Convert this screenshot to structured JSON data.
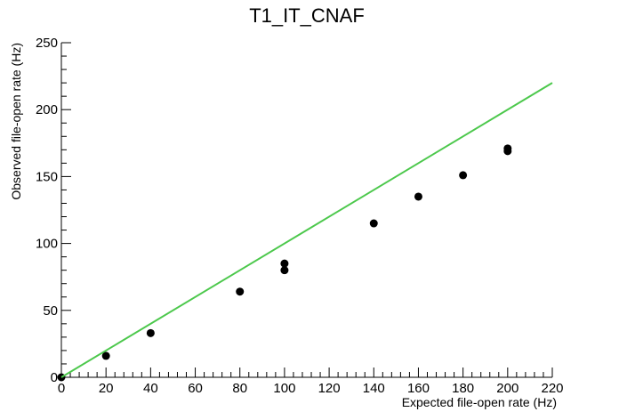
{
  "chart_data": {
    "type": "scatter",
    "title": "T1_IT_CNAF",
    "xlabel": "Expected file-open rate (Hz)",
    "ylabel": "Observed file-open rate (Hz)",
    "xlim": [
      0,
      220
    ],
    "ylim": [
      0,
      250
    ],
    "x_ticks": [
      0,
      20,
      40,
      60,
      80,
      100,
      120,
      140,
      160,
      180,
      200,
      220
    ],
    "y_ticks": [
      0,
      50,
      100,
      150,
      200,
      250
    ],
    "x_tick_labels": [
      "0",
      "20",
      "40",
      "60",
      "80",
      "100",
      "120",
      "140",
      "160",
      "180",
      "200",
      "220"
    ],
    "y_tick_labels": [
      "0",
      "50",
      "100",
      "150",
      "200",
      "250"
    ],
    "grid": false,
    "series": [
      {
        "type": "scatter",
        "color": "#000000",
        "points": [
          [
            0,
            0
          ],
          [
            20,
            16
          ],
          [
            40,
            33
          ],
          [
            80,
            64
          ],
          [
            100,
            80
          ],
          [
            100,
            85
          ],
          [
            140,
            115
          ],
          [
            160,
            135
          ],
          [
            180,
            151
          ],
          [
            200,
            169
          ],
          [
            200,
            171
          ]
        ]
      },
      {
        "type": "line",
        "color": "#4cc84c",
        "points": [
          [
            0,
            0
          ],
          [
            220,
            220
          ]
        ]
      }
    ]
  }
}
